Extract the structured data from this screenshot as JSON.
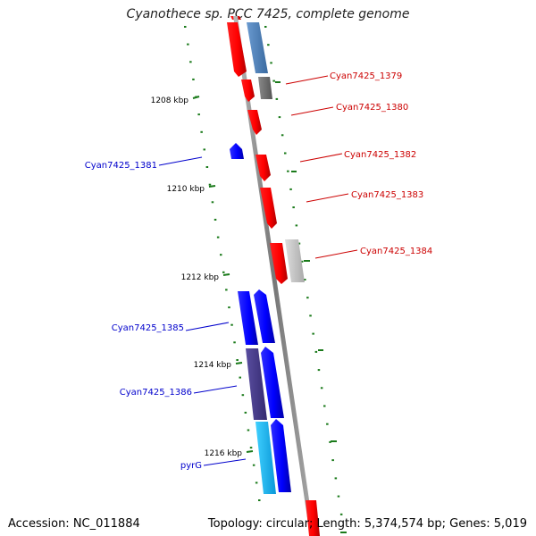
{
  "title": "Cyanothece sp. PCC 7425, complete genome",
  "footer": {
    "accession": "Accession: NC_011884",
    "topology": "Topology: circular; Length: 5,374,574 bp; Genes: 5,019"
  },
  "ruler": {
    "labels": [
      "1208 kbp",
      "1210 kbp",
      "1212 kbp",
      "1214 kbp",
      "1216 kbp"
    ]
  },
  "features": [
    {
      "label": "Cyan7425_1379",
      "strand": "forward",
      "color": "#cc0000"
    },
    {
      "label": "Cyan7425_1380",
      "strand": "forward",
      "color": "#cc0000"
    },
    {
      "label": "Cyan7425_1381",
      "strand": "reverse",
      "color": "#0000cc"
    },
    {
      "label": "Cyan7425_1382",
      "strand": "forward",
      "color": "#cc0000"
    },
    {
      "label": "Cyan7425_1383",
      "strand": "forward",
      "color": "#cc0000"
    },
    {
      "label": "Cyan7425_1384",
      "strand": "forward",
      "color": "#cc0000"
    },
    {
      "label": "Cyan7425_1385",
      "strand": "reverse",
      "color": "#0000cc"
    },
    {
      "label": "Cyan7425_1386",
      "strand": "reverse",
      "color": "#0000cc"
    },
    {
      "label": "pyrG",
      "strand": "reverse",
      "color": "#0000cc"
    }
  ],
  "colors": {
    "forward_feature": "#ff0000",
    "reverse_feature": "#0000ff",
    "backbone": "#888888",
    "tick": "#1a7a1a",
    "steelblue_feature": "#4a7db5",
    "grey_feature": "#777777",
    "lightgrey_feature": "#c4c4c4",
    "purple_feature": "#4b3e8c",
    "cyan_feature": "#1ab4f0"
  }
}
